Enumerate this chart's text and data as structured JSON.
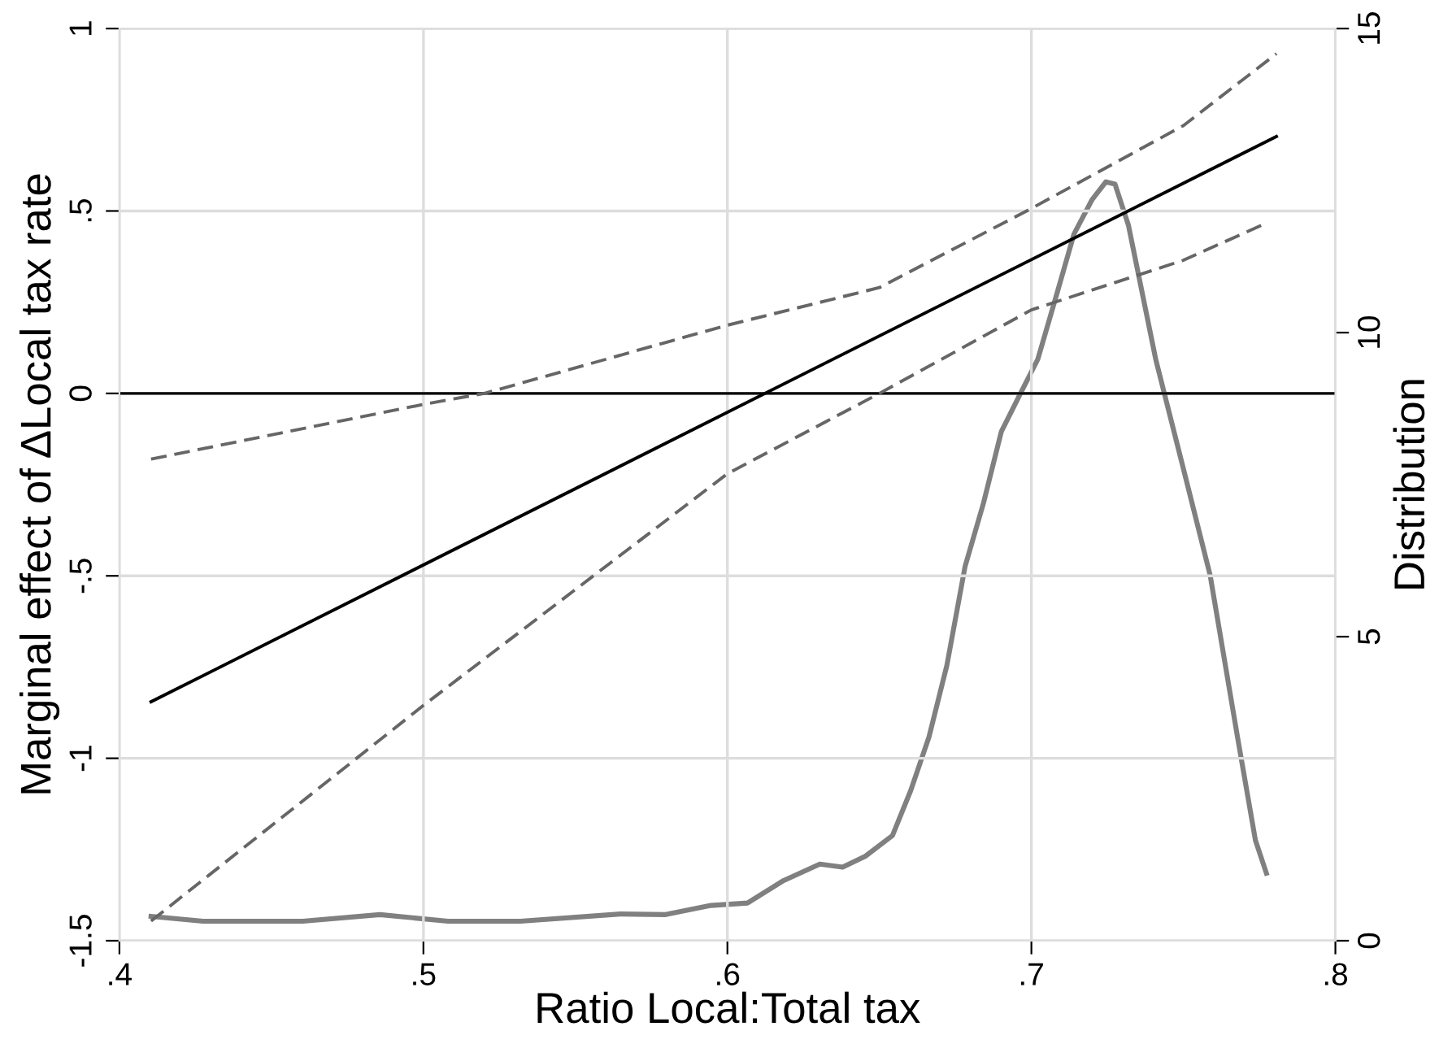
{
  "chart_data": {
    "type": "line",
    "xlabel": "Ratio Local:Total tax",
    "ylabel": "Marginal effect of ΔLocal tax rate",
    "y2label": "Distribution",
    "xlim": [
      0.4,
      0.8
    ],
    "xticks": [
      {
        "value": 0.4,
        "label": ".4"
      },
      {
        "value": 0.5,
        "label": ".5"
      },
      {
        "value": 0.6,
        "label": ".6"
      },
      {
        "value": 0.7,
        "label": ".7"
      },
      {
        "value": 0.8,
        "label": ".8"
      }
    ],
    "ylim": [
      -1.5,
      1
    ],
    "yticks": [
      {
        "value": -1.5,
        "label": "-1.5"
      },
      {
        "value": -1,
        "label": "-1"
      },
      {
        "value": -0.5,
        "label": "-.5"
      },
      {
        "value": 0,
        "label": "0"
      },
      {
        "value": 0.5,
        "label": ".5"
      },
      {
        "value": 1,
        "label": "1"
      }
    ],
    "y2lim": [
      0,
      15
    ],
    "y2ticks": [
      0,
      5,
      10,
      15
    ],
    "grid": true,
    "ref_lines": [
      {
        "axis": "y",
        "value": 0,
        "color": "#000000",
        "line_style": "solid"
      }
    ],
    "series": [
      {
        "color": "#000000",
        "line_style": "solid",
        "x": [
          0.4104,
          0.7806
        ],
        "values": [
          -0.845,
          0.704
        ]
      },
      {
        "color": "#666666",
        "line_style": "dashed",
        "x": [
          0.4104,
          0.5,
          0.52,
          0.6,
          0.65,
          0.7,
          0.75,
          0.7806
        ],
        "values": [
          -0.18,
          -0.03,
          0.0,
          0.187,
          0.29,
          0.507,
          0.734,
          0.931
        ]
      },
      {
        "color": "#666666",
        "line_style": "dashed",
        "x": [
          0.4104,
          0.5,
          0.6,
          0.65,
          0.7,
          0.75,
          0.7776
        ],
        "values": [
          -1.446,
          -0.855,
          -0.22,
          0.0,
          0.229,
          0.365,
          0.468
        ]
      },
      {
        "color": "#808080",
        "line_style": "solid",
        "axis": "y2",
        "x": [
          0.4104,
          0.4275,
          0.4603,
          0.4857,
          0.5081,
          0.5319,
          0.5648,
          0.5797,
          0.5946,
          0.6066,
          0.6185,
          0.6304,
          0.6379,
          0.6454,
          0.6543,
          0.6603,
          0.6663,
          0.6722,
          0.6782,
          0.6842,
          0.6901,
          0.6961,
          0.7021,
          0.7081,
          0.714,
          0.72,
          0.7245,
          0.7275,
          0.7319,
          0.7409,
          0.7499,
          0.7588,
          0.7678,
          0.7737,
          0.7773
        ],
        "values": [
          0.4,
          0.32,
          0.32,
          0.43,
          0.32,
          0.32,
          0.44,
          0.43,
          0.58,
          0.62,
          0.99,
          1.26,
          1.21,
          1.39,
          1.73,
          2.47,
          3.35,
          4.53,
          6.16,
          7.19,
          8.37,
          8.97,
          9.56,
          10.59,
          11.62,
          12.19,
          12.48,
          12.44,
          11.77,
          9.56,
          7.78,
          6.01,
          3.35,
          1.65,
          1.11
        ]
      }
    ]
  }
}
